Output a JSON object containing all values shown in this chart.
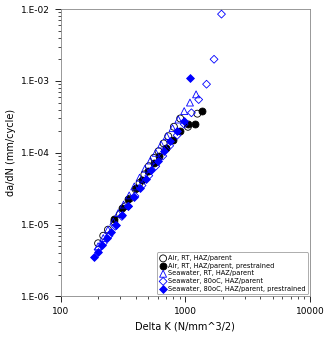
{
  "title": "",
  "xlabel": "Delta K (N/mm^3/2)",
  "ylabel": "da/dN (mm/cycle)",
  "xlim": [
    100,
    10000
  ],
  "ylim": [
    1e-06,
    0.01
  ],
  "background_color": "#ffffff",
  "legend_entries": [
    "Air, RT, HAZ/parent",
    "Air, RT, HAZ/parent, prestrained",
    "Seawater, RT, HAZ/parent",
    "Seawater, 80oC, HAZ/parent",
    "Seawater, 80oC, HAZ/parent, prestrained"
  ],
  "series": {
    "air_rt": {
      "x": [
        200,
        220,
        240,
        270,
        300,
        330,
        360,
        400,
        430,
        470,
        510,
        560,
        610,
        670,
        730,
        810,
        910,
        1050,
        1250
      ],
      "y": [
        5.5e-06,
        7e-06,
        8.5e-06,
        1.1e-05,
        1.4e-05,
        1.8e-05,
        2.3e-05,
        3.1e-05,
        3.8e-05,
        5e-05,
        6.5e-05,
        8.5e-05,
        0.000105,
        0.000135,
        0.00017,
        0.00023,
        0.0003,
        0.00023,
        0.00035
      ],
      "marker": "o",
      "color": "black",
      "filled": false,
      "size": 5
    },
    "air_rt_pre": {
      "x": [
        270,
        310,
        350,
        400,
        450,
        500,
        560,
        620,
        700,
        790,
        900,
        1050,
        1200,
        1350
      ],
      "y": [
        1.2e-05,
        1.7e-05,
        2.3e-05,
        3.2e-05,
        4.2e-05,
        5.5e-05,
        7.2e-05,
        9e-05,
        0.000115,
        0.00015,
        0.0002,
        0.00025,
        0.00025,
        0.00038
      ],
      "marker": "o",
      "color": "black",
      "filled": true,
      "size": 5
    },
    "sw_rt": {
      "x": [
        200,
        220,
        240,
        265,
        290,
        320,
        355,
        390,
        430,
        475,
        525,
        580,
        640,
        710,
        790,
        880,
        980,
        1090,
        1220
      ],
      "y": [
        5e-06,
        6.5e-06,
        8.5e-06,
        1.1e-05,
        1.45e-05,
        1.9e-05,
        2.55e-05,
        3.4e-05,
        4.5e-05,
        6e-05,
        7.8e-05,
        0.0001,
        0.00013,
        0.00017,
        0.00022,
        0.00029,
        0.00038,
        0.0005,
        0.00065
      ],
      "marker": "^",
      "color": "blue",
      "filled": false,
      "size": 5
    },
    "sw_80": {
      "x": [
        200,
        220,
        245,
        275,
        310,
        350,
        395,
        450,
        510,
        580,
        660,
        750,
        860,
        980,
        1120,
        1280,
        1480,
        1700,
        1950
      ],
      "y": [
        4.5e-06,
        5.5e-06,
        7e-06,
        9.5e-06,
        1.3e-05,
        1.8e-05,
        2.5e-05,
        3.5e-05,
        4.8e-05,
        6.5e-05,
        9e-05,
        0.000125,
        0.000175,
        0.00025,
        0.00036,
        0.00055,
        0.0009,
        0.002,
        0.0085
      ],
      "marker": "D",
      "color": "blue",
      "filled": false,
      "size": 4
    },
    "sw_80_pre": {
      "x": [
        185,
        200,
        215,
        235,
        255,
        280,
        310,
        345,
        385,
        430,
        480,
        535,
        600,
        675,
        760,
        860,
        970,
        1090
      ],
      "y": [
        3.5e-06,
        4.2e-06,
        5.2e-06,
        6.5e-06,
        8e-06,
        1e-05,
        1.35e-05,
        1.8e-05,
        2.4e-05,
        3.2e-05,
        4.3e-05,
        5.7e-05,
        7.8e-05,
        0.000105,
        0.000145,
        0.0002,
        0.00028,
        0.0011
      ],
      "marker": "D",
      "color": "blue",
      "filled": true,
      "size": 4
    }
  }
}
